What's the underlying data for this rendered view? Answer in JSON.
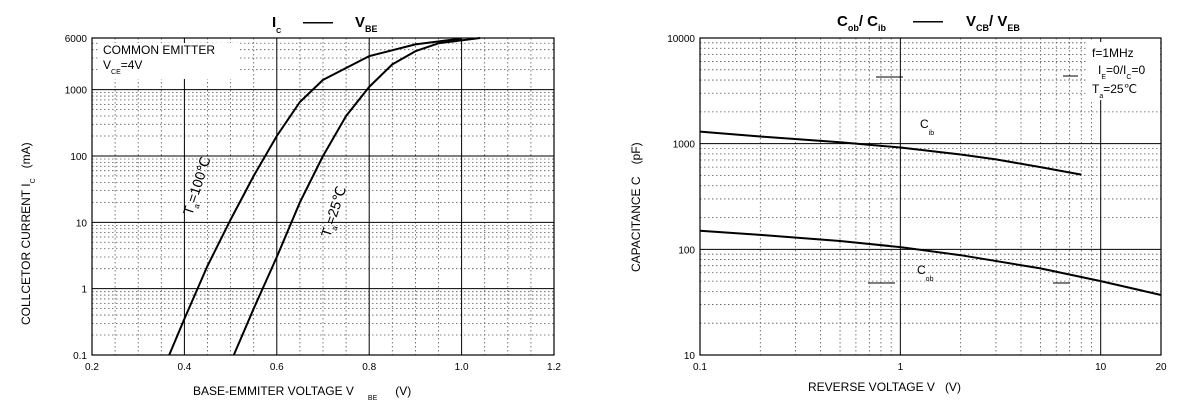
{
  "chart_data": [
    {
      "type": "line",
      "title": {
        "main": "I",
        "main_sub": "C",
        "dash": "——",
        "second": "V",
        "second_sub": "BE"
      },
      "xlabel": {
        "text": "BASE-EMMITER VOLTAGE V",
        "sub": "BE",
        "unit": "(V)"
      },
      "ylabel": {
        "text": "COLLCETOR CURRENT   I",
        "sub": "C",
        "unit": "(mA)"
      },
      "xlim": [
        0.2,
        1.2
      ],
      "ylim": [
        0.1,
        6000
      ],
      "yscale": "log",
      "xticks": [
        "0.2",
        "0.4",
        "0.6",
        "0.8",
        "1.0",
        "1.2"
      ],
      "yticks": [
        "0.1",
        "1",
        "10",
        "100",
        "1000",
        "6000"
      ],
      "grid": true,
      "annotations": [
        {
          "id": "cond1",
          "text": "COMMON EMITTER"
        },
        {
          "id": "cond2",
          "text": "V",
          "sub": "CE",
          "rest": "=4V"
        }
      ],
      "series": [
        {
          "name": "Ta=100℃",
          "label_main": "T",
          "label_sub": "a",
          "label_rest": "=100℃",
          "x": [
            0.367,
            0.4,
            0.45,
            0.5,
            0.55,
            0.6,
            0.65,
            0.7,
            0.8,
            0.9,
            1.0
          ],
          "y": [
            0.1,
            0.35,
            2.2,
            11,
            50,
            200,
            650,
            1400,
            3200,
            4800,
            5900
          ]
        },
        {
          "name": "Ta=25℃",
          "label_main": "T",
          "label_sub": "a",
          "label_rest": "=25℃",
          "x": [
            0.507,
            0.55,
            0.6,
            0.65,
            0.7,
            0.75,
            0.8,
            0.85,
            0.9,
            0.95,
            1.04
          ],
          "y": [
            0.1,
            0.5,
            3,
            20,
            100,
            400,
            1100,
            2400,
            3800,
            5000,
            6000
          ]
        }
      ]
    },
    {
      "type": "line",
      "title": {
        "main": "C",
        "main_sub": "ob",
        "slash": "/ C",
        "slash_sub": "ib",
        "dash": "——",
        "second": "V",
        "second_sub": "CB",
        "second_slash": "/ V",
        "second_slash_sub": "EB"
      },
      "xlabel": {
        "text": "REVERSE VOLTAGE   V",
        "unit": "(V)"
      },
      "ylabel": {
        "text": "CAPACITANCE   C",
        "unit": "(pF)"
      },
      "xlim": [
        0.1,
        20
      ],
      "ylim": [
        10,
        10000
      ],
      "xscale": "log",
      "yscale": "log",
      "xticks": [
        "0.1",
        "1",
        "10",
        "20"
      ],
      "yticks": [
        "10",
        "100",
        "1000",
        "10000"
      ],
      "grid": true,
      "annotations": [
        {
          "id": "freq",
          "text": "f=1MHz"
        },
        {
          "id": "ie",
          "text": "I",
          "sub1": "E",
          "mid": "=0/I",
          "sub2": "C",
          "rest": "=0"
        },
        {
          "id": "temp",
          "text": "T",
          "sub": "a",
          "rest": "=25℃"
        }
      ],
      "series": [
        {
          "name": "Cib",
          "label_main": "C",
          "label_sub": "ib",
          "x": [
            0.1,
            0.2,
            0.5,
            1,
            2,
            3,
            5,
            8
          ],
          "y": [
            1300,
            1170,
            1030,
            920,
            790,
            710,
            600,
            510
          ]
        },
        {
          "name": "Cob",
          "label_main": "C",
          "label_sub": "ob",
          "x": [
            0.1,
            0.2,
            0.5,
            1,
            2,
            5,
            10,
            20
          ],
          "y": [
            150,
            137,
            120,
            105,
            88,
            66,
            50,
            37
          ]
        }
      ]
    }
  ]
}
